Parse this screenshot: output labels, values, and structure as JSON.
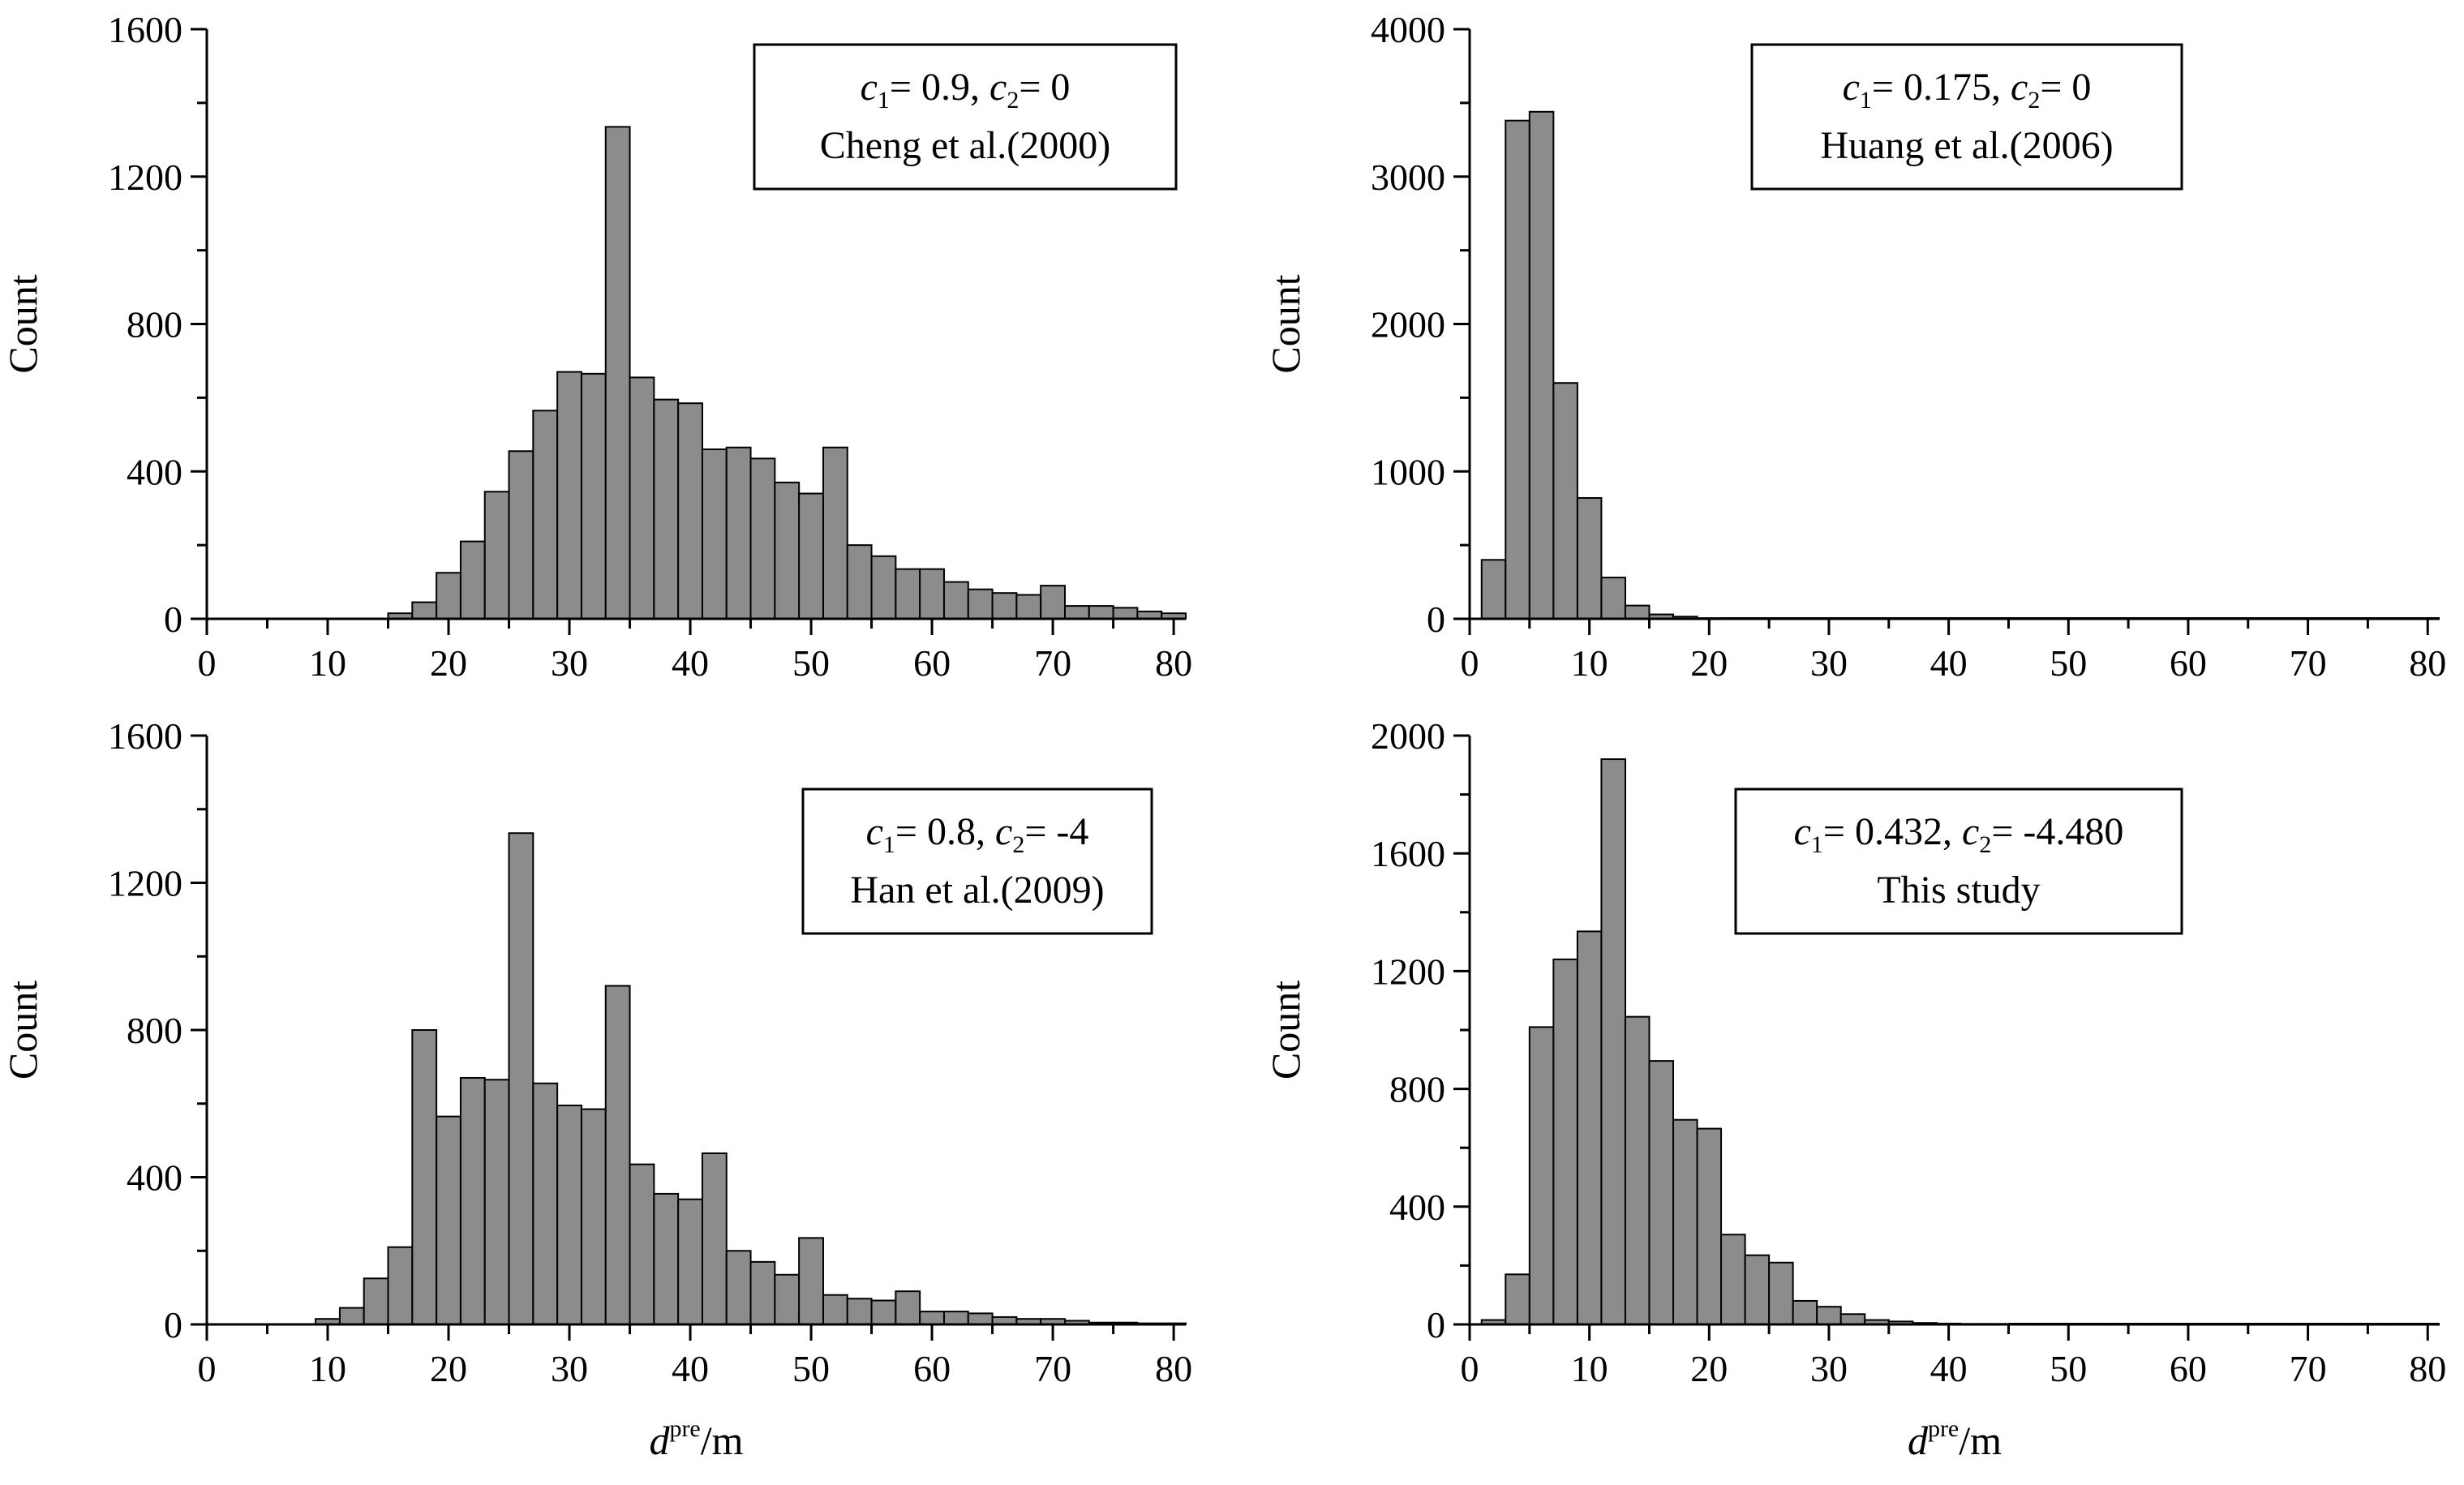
{
  "chart_data": [
    {
      "type": "bar",
      "position": "top-left",
      "xlabel": "",
      "ylabel": "Count",
      "xlim": [
        0,
        81
      ],
      "ylim": [
        0,
        1600
      ],
      "xticks": [
        "0",
        "10",
        "20",
        "30",
        "40",
        "50",
        "60",
        "70",
        "80"
      ],
      "yticks": [
        "0",
        "400",
        "800",
        "1200",
        "1600"
      ],
      "legend": {
        "c1": "0.9",
        "c2": "0",
        "source": "Cheng et al.(2000)"
      },
      "bin_width": 2,
      "bins_start": 15,
      "values": [
        15,
        45,
        125,
        210,
        345,
        455,
        565,
        670,
        665,
        1335,
        655,
        595,
        585,
        460,
        465,
        435,
        370,
        340,
        465,
        200,
        170,
        135,
        135,
        100,
        80,
        70,
        65,
        90,
        35,
        35,
        30,
        20,
        15
      ]
    },
    {
      "type": "bar",
      "position": "top-right",
      "xlabel": "",
      "ylabel": "Count",
      "xlim": [
        0,
        81
      ],
      "ylim": [
        0,
        4000
      ],
      "xticks": [
        "0",
        "10",
        "20",
        "30",
        "40",
        "50",
        "60",
        "70",
        "80"
      ],
      "yticks": [
        "0",
        "1000",
        "2000",
        "3000",
        "4000"
      ],
      "legend": {
        "c1": "0.175",
        "c2": "0",
        "source": "Huang et al.(2006)"
      },
      "bin_width": 2,
      "bins_start": 1,
      "values": [
        400,
        3380,
        3440,
        1600,
        820,
        280,
        90,
        30,
        15,
        5,
        2,
        2,
        1,
        1,
        1,
        1,
        1,
        1,
        1,
        1,
        1,
        1,
        1,
        1,
        1,
        1,
        1,
        1,
        1,
        1,
        1,
        1,
        1,
        1,
        1,
        1,
        1,
        1,
        1,
        1
      ]
    },
    {
      "type": "bar",
      "position": "bottom-left",
      "xlabel": "d^pre/m",
      "ylabel": "Count",
      "xlim": [
        0,
        81
      ],
      "ylim": [
        0,
        1600
      ],
      "xticks": [
        "0",
        "10",
        "20",
        "30",
        "40",
        "50",
        "60",
        "70",
        "80"
      ],
      "yticks": [
        "0",
        "400",
        "800",
        "1200",
        "1600"
      ],
      "legend": {
        "c1": "0.8",
        "c2": "-4",
        "source": "Han et al.(2009)"
      },
      "bin_width": 2,
      "bins_start": 9,
      "values": [
        15,
        45,
        125,
        210,
        800,
        565,
        670,
        665,
        1335,
        655,
        595,
        585,
        920,
        435,
        355,
        340,
        465,
        200,
        170,
        135,
        235,
        80,
        70,
        65,
        90,
        35,
        35,
        30,
        20,
        15,
        15,
        10,
        5,
        5,
        3,
        3
      ]
    },
    {
      "type": "bar",
      "position": "bottom-right",
      "xlabel": "d^pre/m",
      "ylabel": "Count",
      "xlim": [
        0,
        81
      ],
      "ylim": [
        0,
        2000
      ],
      "xticks": [
        "0",
        "10",
        "20",
        "30",
        "40",
        "50",
        "60",
        "70",
        "80"
      ],
      "yticks": [
        "0",
        "400",
        "800",
        "1200",
        "1600",
        "2000"
      ],
      "legend": {
        "c1": "0.432",
        "c2": "-4.480",
        "source": "This study"
      },
      "bin_width": 2,
      "bins_start": 1,
      "values": [
        15,
        170,
        1010,
        1240,
        1335,
        1920,
        1045,
        895,
        695,
        665,
        305,
        235,
        210,
        80,
        60,
        35,
        15,
        10,
        5,
        3,
        2,
        2,
        1,
        1,
        1,
        1,
        1,
        1,
        1,
        1,
        1,
        1,
        1,
        1,
        1,
        1,
        1,
        1,
        1,
        1
      ]
    }
  ],
  "labels": {
    "count": "Count",
    "c1": "c",
    "c1_sub": "1",
    "c2": "c",
    "c2_sub": "2",
    "eq": "= ",
    "sep": ", ",
    "xlabel_d": "d",
    "xlabel_sup": "pre",
    "xlabel_unit": "/m"
  },
  "colors": {
    "bar_fill": "#8c8c8c",
    "bar_stroke": "#000000",
    "axis": "#000000",
    "background": "#ffffff"
  }
}
